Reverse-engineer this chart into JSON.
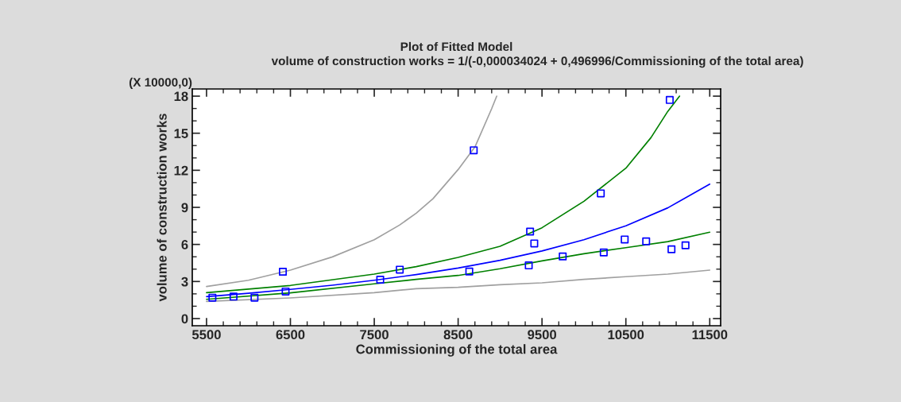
{
  "chart_data": {
    "type": "scatter",
    "title": "Plot of Fitted Model",
    "subtitle": "volume of construction works = 1/(-0,000034024 + 0,496996/Commissioning of the total area)",
    "xlabel": "Commissioning of the total area",
    "ylabel": "volume of construction works",
    "annotations": [
      "(X 10000,0)"
    ],
    "xlim": [
      5330,
      11630
    ],
    "ylim": [
      -0.58,
      18.58
    ],
    "xticks": [
      5500,
      6500,
      7500,
      8500,
      9500,
      10500,
      11500
    ],
    "yticks": [
      0,
      3,
      6,
      9,
      12,
      15,
      18
    ],
    "grid": false,
    "series": [
      {
        "type": "line",
        "color": "#a0a0a0",
        "x": [
          5500,
          6000,
          6500,
          7000,
          7500,
          7800,
          8000,
          8200,
          8500,
          8700,
          8900,
          8960
        ],
        "values": [
          2.59,
          3.1,
          3.92,
          4.99,
          6.38,
          7.56,
          8.53,
          9.7,
          12.06,
          13.88,
          16.99,
          18.0
        ]
      },
      {
        "type": "line",
        "color": "#a0a0a0",
        "x": [
          5500,
          6500,
          7500,
          8000,
          8500,
          9000,
          9500,
          10000,
          10500,
          11000,
          11500
        ],
        "values": [
          1.39,
          1.67,
          2.1,
          2.42,
          2.53,
          2.74,
          2.89,
          3.17,
          3.39,
          3.6,
          3.92
        ]
      },
      {
        "type": "line",
        "color": "#008000",
        "x": [
          5500,
          6500,
          7500,
          8000,
          8500,
          9000,
          9500,
          10000,
          10500,
          10800,
          11000,
          11140
        ],
        "values": [
          2.1,
          2.68,
          3.6,
          4.2,
          4.95,
          5.85,
          7.35,
          9.49,
          12.17,
          14.65,
          16.77,
          18.0
        ]
      },
      {
        "type": "line",
        "color": "#008000",
        "x": [
          5500,
          6500,
          7500,
          8000,
          8500,
          9000,
          9500,
          10000,
          10500,
          11000,
          11500
        ],
        "values": [
          1.56,
          2.08,
          2.81,
          3.17,
          3.49,
          4.03,
          4.67,
          5.25,
          5.74,
          6.23,
          6.99
        ]
      },
      {
        "type": "line",
        "color": "#0000ff",
        "x": [
          5500,
          6000,
          6500,
          7000,
          7500,
          8000,
          8500,
          9000,
          9500,
          10000,
          10500,
          11000,
          11500
        ],
        "values": [
          1.78,
          2.05,
          2.36,
          2.7,
          3.1,
          3.56,
          4.09,
          4.72,
          5.47,
          6.38,
          7.51,
          8.96,
          10.88
        ]
      },
      {
        "color": "#0000ff",
        "marker": "square",
        "x": [
          5570,
          5822,
          6072,
          6410,
          6443,
          7571,
          7804,
          8686,
          8633,
          9358,
          9408,
          9342,
          9747,
          10201,
          10236,
          10486,
          10742,
          11023,
          11044,
          11211
        ],
        "values": [
          1.69,
          1.78,
          1.69,
          3.79,
          2.19,
          3.15,
          3.96,
          13.62,
          3.81,
          7.04,
          6.08,
          4.3,
          5.03,
          10.13,
          5.35,
          6.4,
          6.25,
          17.69,
          5.61,
          5.93
        ]
      }
    ]
  }
}
